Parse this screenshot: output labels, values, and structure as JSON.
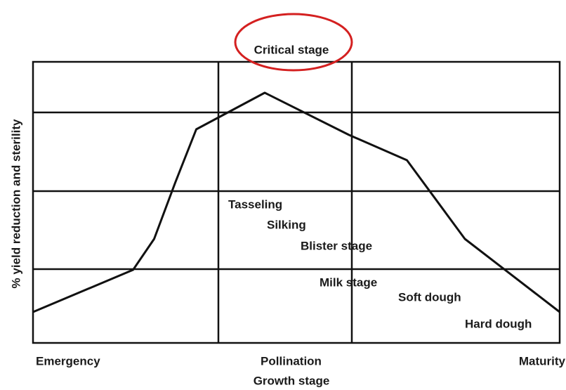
{
  "chart_data": {
    "type": "line",
    "ylabel": "% yield reduction and sterility",
    "xlabel": "Growth stage",
    "x": [
      0,
      19,
      23,
      27,
      31,
      36,
      44,
      60,
      71,
      82,
      100
    ],
    "series": [
      {
        "name": null,
        "color": "#111111",
        "values": [
          11,
          26,
          37,
          57,
          76,
          81,
          89,
          74,
          65,
          37,
          11
        ]
      }
    ],
    "xlim": [
      0,
      100
    ],
    "ylim": [
      0,
      100
    ],
    "xticks": [
      {
        "value": 0,
        "label": "Emergency"
      },
      {
        "value": 49,
        "label": "Pollination"
      },
      {
        "value": 100,
        "label": "Maturity"
      }
    ],
    "highlight": "Critical stage",
    "annotations": [
      "Tasseling",
      "Silking",
      "Blister stage",
      "Milk stage",
      "Soft dough",
      "Hard dough"
    ]
  }
}
